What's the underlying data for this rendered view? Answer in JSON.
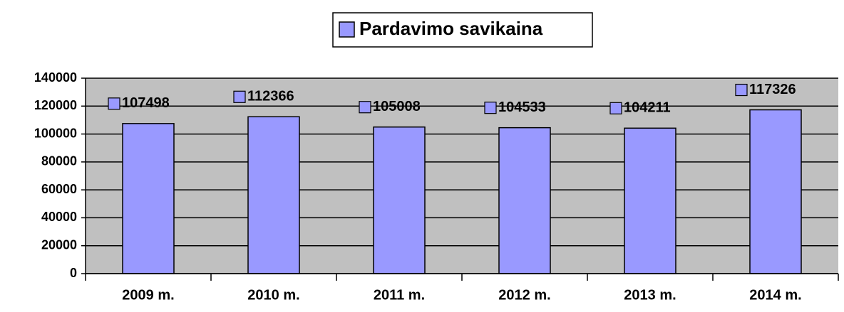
{
  "chart_data": {
    "type": "bar",
    "categories": [
      "2009 m.",
      "2010 m.",
      "2011 m.",
      "2012 m.",
      "2013 m.",
      "2014 m."
    ],
    "series": [
      {
        "name": "Pardavimo savikaina",
        "color": "#9999ff",
        "values": [
          107498,
          112366,
          105008,
          104533,
          104211,
          117326
        ]
      }
    ],
    "ylim": [
      0,
      140000
    ],
    "yticks": [
      0,
      20000,
      40000,
      60000,
      80000,
      100000,
      120000,
      140000
    ],
    "grid": true,
    "legend": "top",
    "plot_background": "#c0c0c0"
  }
}
